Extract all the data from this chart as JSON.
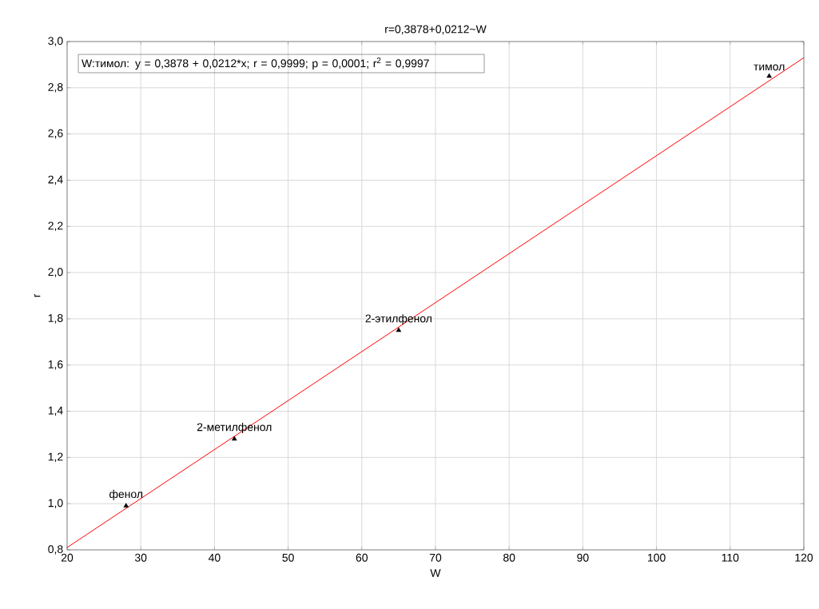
{
  "chart_data": {
    "type": "scatter",
    "title": "r=0,3878+0,0212~W",
    "xlabel": "W",
    "ylabel": "r",
    "xlim": [
      20,
      120
    ],
    "ylim": [
      0.8,
      3.0
    ],
    "xticks": [
      20,
      30,
      40,
      50,
      60,
      70,
      80,
      90,
      100,
      110,
      120
    ],
    "yticks": [
      {
        "value": 0.8,
        "label": "0,8"
      },
      {
        "value": 1.0,
        "label": "1,0"
      },
      {
        "value": 1.2,
        "label": "1,2"
      },
      {
        "value": 1.4,
        "label": "1,4"
      },
      {
        "value": 1.6,
        "label": "1,6"
      },
      {
        "value": 1.8,
        "label": "1,8"
      },
      {
        "value": 2.0,
        "label": "2,0"
      },
      {
        "value": 2.2,
        "label": "2,2"
      },
      {
        "value": 2.4,
        "label": "2,4"
      },
      {
        "value": 2.6,
        "label": "2,6"
      },
      {
        "value": 2.8,
        "label": "2,8"
      },
      {
        "value": 3.0,
        "label": "3,0"
      }
    ],
    "grid": true,
    "marker": "triangle",
    "series": [
      {
        "color": "#000000",
        "x": [
          28.0,
          42.7,
          65.0,
          115.3
        ],
        "values": [
          0.99,
          1.28,
          1.75,
          2.85
        ]
      },
      {
        "type": "line",
        "color": "#ff0000",
        "marker": "none",
        "x": [
          20,
          120
        ],
        "values": [
          0.81,
          2.93
        ]
      }
    ],
    "annotations": [
      "W:тимол:   y = 0,3878 + 0,0212*x;  r = 0,9999; p = 0,0001; r$^{2}$ = 0,9997",
      {
        "text": "фенол",
        "x": 28.0,
        "y": 0.99
      },
      {
        "text": "2-метилфенол",
        "x": 42.7,
        "y": 1.28
      },
      {
        "text": "2-этилфенол",
        "x": 65.0,
        "y": 1.75
      },
      {
        "text": "тимол",
        "x": 115.3,
        "y": 2.85
      }
    ]
  }
}
